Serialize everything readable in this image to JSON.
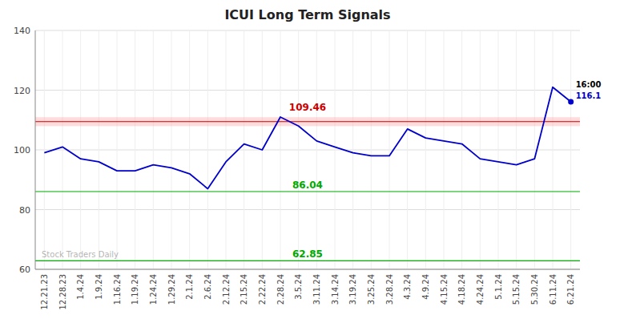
{
  "chart_data": {
    "type": "line",
    "title": "ICUI Long Term Signals",
    "categories": [
      "12.21.23",
      "12.28.23",
      "1.4.24",
      "1.9.24",
      "1.16.24",
      "1.19.24",
      "1.24.24",
      "1.29.24",
      "2.1.24",
      "2.6.24",
      "2.12.24",
      "2.15.24",
      "2.22.24",
      "2.28.24",
      "3.5.24",
      "3.11.24",
      "3.14.24",
      "3.19.24",
      "3.25.24",
      "3.28.24",
      "4.3.24",
      "4.9.24",
      "4.15.24",
      "4.18.24",
      "4.24.24",
      "5.1.24",
      "5.15.24",
      "5.30.24",
      "6.11.24",
      "6.21.24"
    ],
    "values": [
      99,
      101,
      97,
      96,
      93,
      93,
      95,
      94,
      92,
      87,
      96,
      102,
      100,
      111,
      108,
      103,
      101,
      99,
      98,
      98,
      107,
      104,
      103,
      102,
      97,
      96,
      95,
      97,
      121,
      116.1
    ],
    "color": "#0000cc",
    "marker": "last",
    "reference_lines": [
      {
        "value": 109.46,
        "color": "#cc0000",
        "band": [
          107.96,
          110.96
        ],
        "band_color": "#ffaaaa"
      },
      {
        "value": 86.04,
        "color": "#00aa00"
      },
      {
        "value": 62.85,
        "color": "#00aa00"
      }
    ],
    "annotations": [
      {
        "text": "16:00"
      }
    ],
    "watermark": "Stock Traders Daily",
    "ylim": [
      60,
      140
    ],
    "yticks": [
      60,
      80,
      100,
      120,
      140
    ],
    "grid": true
  }
}
